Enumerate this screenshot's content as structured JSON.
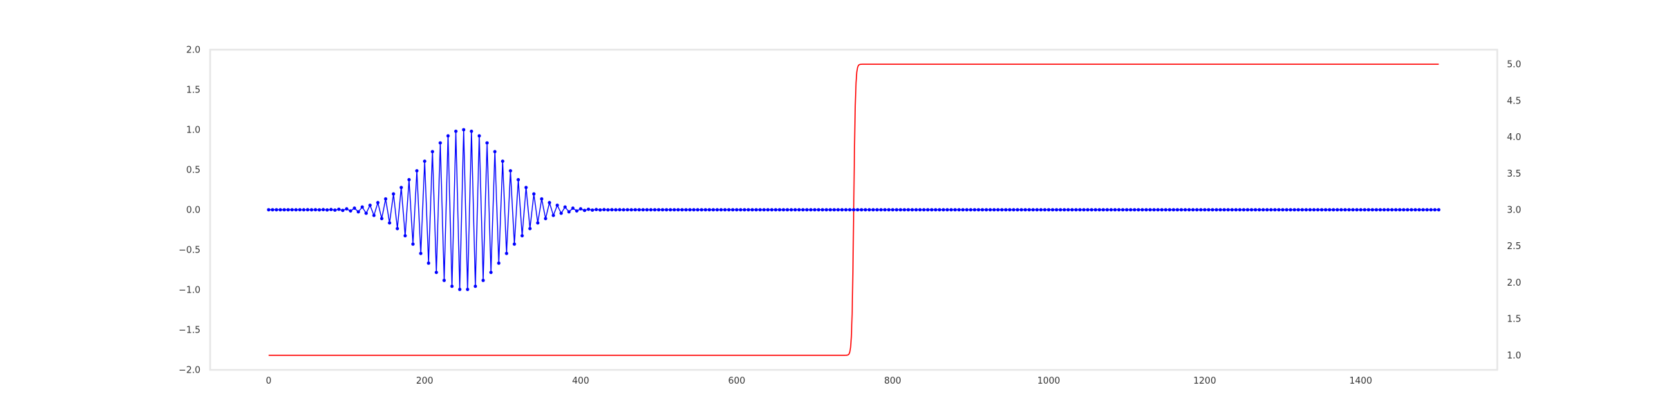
{
  "chart_data": {
    "type": "line",
    "title": "",
    "xlabel": "",
    "ylabel": "",
    "y2label": "",
    "grid": false,
    "xlim": [
      -75,
      1575
    ],
    "ylim": [
      -2.0,
      2.0
    ],
    "y2lim": [
      0.8,
      5.2
    ],
    "xticks": [
      0,
      200,
      400,
      600,
      800,
      1000,
      1200,
      1400
    ],
    "xtick_labels": [
      "0",
      "200",
      "400",
      "600",
      "800",
      "1000",
      "1200",
      "1400"
    ],
    "yticks": [
      2.0,
      1.5,
      1.0,
      0.5,
      0.0,
      -0.5,
      -1.0,
      -1.5,
      -2.0
    ],
    "ytick_labels": [
      "2.0",
      "1.5",
      "1.0",
      "0.5",
      "0.0",
      "−0.5",
      "−1.0",
      "−1.5",
      "−2.0"
    ],
    "y2ticks": [
      5.0,
      4.5,
      4.0,
      3.5,
      3.0,
      2.5,
      2.0,
      1.5,
      1.0
    ],
    "y2tick_labels": [
      "5.0",
      "4.5",
      "4.0",
      "3.5",
      "3.0",
      "2.5",
      "2.0",
      "1.5",
      "1.0"
    ],
    "series": [
      {
        "axis": "left",
        "color": "#0000ff",
        "style": "line-with-dots",
        "description": "Gaussian-windowed sinusoid",
        "x_start": 0,
        "x_end": 1500,
        "x_step": 5,
        "center": 250,
        "sigma": 50,
        "period": 10,
        "amplitude": 1.0
      },
      {
        "axis": "right",
        "color": "#ff0000",
        "style": "line",
        "description": "logistic step",
        "x_start": 0,
        "x_end": 1500,
        "low": 1.0,
        "high": 5.0,
        "midpoint": 750,
        "steepness": 0.9
      }
    ],
    "colors": {
      "frame": "#e6e6e6",
      "signal": "#0000ff",
      "step": "#ff0000"
    }
  }
}
